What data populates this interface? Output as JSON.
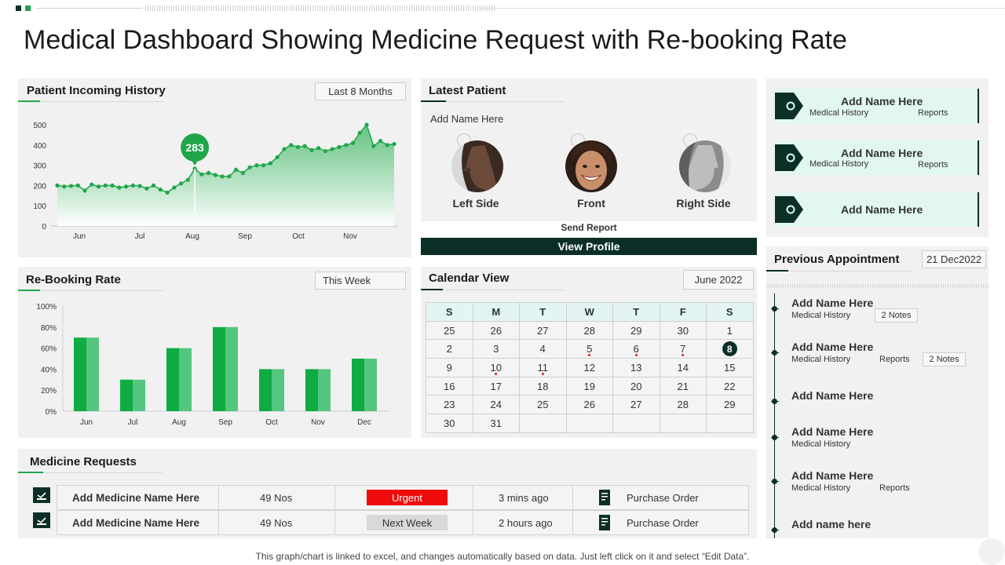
{
  "title": "Medical Dashboard Showing Medicine Request with Re-booking Rate",
  "patient_history": {
    "title": "Patient Incoming History",
    "badge": "Last 8 Months",
    "highlight_label": "283",
    "chart_data": {
      "type": "area",
      "x_ticks": [
        "Jun",
        "Jul",
        "Aug",
        "Sep",
        "Oct",
        "Nov"
      ],
      "y_ticks": [
        "500",
        "400",
        "300",
        "200",
        "100",
        "0"
      ],
      "ylim": [
        0,
        500
      ],
      "values": [
        200,
        195,
        198,
        200,
        175,
        205,
        195,
        200,
        200,
        190,
        195,
        200,
        198,
        185,
        200,
        180,
        165,
        190,
        210,
        228,
        283,
        255,
        262,
        252,
        245,
        245,
        278,
        262,
        290,
        300,
        300,
        310,
        340,
        380,
        400,
        390,
        395,
        375,
        385,
        370,
        380,
        390,
        400,
        410,
        460,
        500,
        395,
        420,
        400,
        405
      ],
      "highlight_index": 20,
      "color": "#1fa64a"
    }
  },
  "rebooking": {
    "title": "Re-Booking Rate",
    "badge": "This Week",
    "chart_data": {
      "type": "bar",
      "categories": [
        "Jun",
        "Jul",
        "Aug",
        "Sep",
        "Oct",
        "Nov",
        "Dec"
      ],
      "values": [
        70,
        30,
        60,
        80,
        40,
        40,
        50
      ],
      "y_ticks": [
        "100%",
        "80%",
        "60%",
        "40%",
        "20%",
        "0%"
      ],
      "ylim": [
        0,
        100
      ],
      "colors": [
        "#0fac44",
        "#55c67e"
      ]
    }
  },
  "latest_patient": {
    "title": "Latest Patient",
    "name": "Add Name Here",
    "views": [
      "Left Side",
      "Front",
      "Right Side"
    ],
    "send_report": "Send Report",
    "view_profile": "View Profile"
  },
  "calendar": {
    "title": "Calendar View",
    "month": "June 2022",
    "headers": [
      "S",
      "M",
      "T",
      "W",
      "T",
      "F",
      "S"
    ],
    "weeks": [
      [
        "25",
        "26",
        "27",
        "28",
        "29",
        "30",
        "1"
      ],
      [
        "2",
        "3",
        "4",
        "5",
        "6",
        "7",
        "8"
      ],
      [
        "9",
        "10",
        "11",
        "12",
        "13",
        "14",
        "15"
      ],
      [
        "16",
        "17",
        "18",
        "19",
        "20",
        "21",
        "22"
      ],
      [
        "23",
        "24",
        "25",
        "26",
        "27",
        "28",
        "29"
      ],
      [
        "30",
        "31",
        "",
        "",
        "",
        "",
        ""
      ]
    ],
    "marked": [
      "5",
      "6",
      "7",
      "10",
      "11"
    ],
    "today": "8"
  },
  "medicine": {
    "title": "Medicine Requests",
    "rows": [
      {
        "name": "Add Medicine Name  Here",
        "qty": "49 Nos",
        "status": "Urgent",
        "status_color": "#ee0b0b",
        "status_text_color": "#ffffff",
        "time": "3 mins ago",
        "order": "Purchase Order"
      },
      {
        "name": "Add Medicine Name  Here",
        "qty": "49 Nos",
        "status": "Next Week",
        "status_color": "#d9d9d9",
        "status_text_color": "#333333",
        "time": "2 hours ago",
        "order": "Purchase Order"
      }
    ]
  },
  "cards": [
    {
      "name": "Add Name Here",
      "history": "Medical History",
      "reports": "Reports"
    },
    {
      "name": "Add Name Here",
      "history": "Medical History",
      "reports": "Reports"
    },
    {
      "name": "Add Name Here",
      "history": "",
      "reports": ""
    }
  ],
  "previous": {
    "title": "Previous Appointment",
    "date": "21 Dec2022",
    "items": [
      {
        "name": "Add Name Here",
        "history": "Medical History",
        "reports": "",
        "notes": "2 Notes"
      },
      {
        "name": "Add Name Here",
        "history": "Medical History",
        "reports": "Reports",
        "notes": "2 Notes"
      },
      {
        "name": "Add Name Here",
        "history": "",
        "reports": "",
        "notes": ""
      },
      {
        "name": "Add Name Here",
        "history": "Medical History",
        "reports": "",
        "notes": ""
      },
      {
        "name": "Add Name Here",
        "history": "Medical History",
        "reports": "Reports",
        "notes": ""
      },
      {
        "name": "Add name here",
        "history": "",
        "reports": "",
        "notes": ""
      }
    ]
  },
  "footer": "This graph/chart is linked to excel,  and changes automatically based on data. Just left click on it and select “Edit Data”."
}
